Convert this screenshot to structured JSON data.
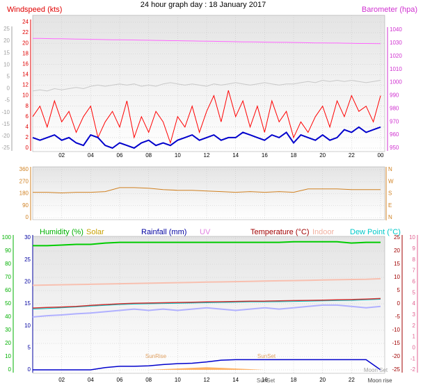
{
  "chart_data": [
    {
      "type": "line",
      "title": "24 hour graph day : 18 January 2017",
      "ylabel": "Windspeed (kts)",
      "y2label": "Barometer (hpa)",
      "x": [
        0,
        0.5,
        1,
        1.5,
        2,
        2.5,
        3,
        3.5,
        4,
        4.5,
        5,
        5.5,
        6,
        6.5,
        7,
        7.5,
        8,
        8.5,
        9,
        9.5,
        10,
        10.5,
        11,
        11.5,
        12,
        12.5,
        13,
        13.5,
        14,
        14.5,
        15,
        15.5,
        16,
        16.5,
        17,
        17.5,
        18,
        18.5,
        19,
        19.5,
        20,
        20.5,
        21,
        21.5,
        22,
        22.5,
        23,
        23.5,
        24
      ],
      "xlim": [
        0,
        24
      ],
      "xticks": [
        {
          "value": 2,
          "label": "02"
        },
        {
          "value": 4,
          "label": "04"
        },
        {
          "value": 6,
          "label": "06"
        },
        {
          "value": 8,
          "label": "08"
        },
        10,
        12,
        14,
        16,
        18,
        20,
        22,
        {
          "value": 24,
          "label": "00"
        }
      ],
      "ylim": [
        0,
        24
      ],
      "yticks": [
        0,
        2,
        4,
        6,
        8,
        10,
        12,
        14,
        16,
        18,
        20,
        22,
        24
      ],
      "ycolor": "#e00000",
      "y2lim": [
        950,
        1040
      ],
      "y2ticks": [
        950,
        960,
        970,
        980,
        990,
        1000,
        1010,
        1020,
        1030,
        1040
      ],
      "y2color": "#d030d0",
      "y3lim": [
        -25,
        25
      ],
      "y3ticks": [
        -25,
        -20,
        -15,
        -10,
        -5,
        0,
        5,
        10,
        15,
        20,
        25
      ],
      "y3color": "#a0a0a0",
      "grid": true,
      "series": [
        {
          "color": "#c8c8c8",
          "axis": "y3",
          "values": [
            -1,
            -0.5,
            -1,
            0,
            -0.5,
            0,
            0.5,
            0,
            1,
            1.5,
            1,
            1.5,
            2,
            1.5,
            2,
            1,
            1.5,
            1,
            2,
            2.5,
            2,
            1.5,
            2,
            1.5,
            1,
            2,
            1.5,
            2,
            2.5,
            2,
            1.5,
            2,
            2.5,
            2,
            1.5,
            2,
            2,
            2.5,
            3,
            2.5,
            3.5,
            3,
            3.5,
            3,
            3.5,
            3,
            2.5,
            3,
            3.5
          ]
        },
        {
          "color": "#ff66ff",
          "axis": "y2",
          "values": [
            1033.5,
            1033.5,
            1033.4,
            1033.3,
            1033.2,
            1033.1,
            1033,
            1032.9,
            1032.8,
            1032.7,
            1032.6,
            1032.5,
            1032.5,
            1032.4,
            1032.3,
            1032.2,
            1032.1,
            1032,
            1031.9,
            1031.8,
            1031.8,
            1031.7,
            1031.6,
            1031.5,
            1031.4,
            1031.3,
            1031.2,
            1031.1,
            1031,
            1030.9,
            1030.9,
            1030.8,
            1030.7,
            1030.6,
            1030.5,
            1030.5,
            1030.4,
            1030.3,
            1030.2,
            1030.1,
            1030.1,
            1030,
            1030,
            1029.9,
            1029.8,
            1029.7,
            1029.7,
            1029.6,
            1029.5
          ]
        },
        {
          "color": "#ff0000",
          "axis": "y",
          "values": [
            6,
            8,
            4,
            9,
            5,
            7,
            3,
            6,
            8,
            2,
            5,
            7,
            4,
            9,
            2,
            6,
            3,
            7,
            5,
            1,
            6,
            4,
            8,
            3,
            7,
            10,
            5,
            11,
            6,
            9,
            4,
            8,
            3,
            9,
            5,
            7,
            2,
            5,
            3,
            6,
            8,
            4,
            9,
            6,
            10,
            7,
            8,
            5,
            10
          ]
        },
        {
          "color": "#0000cc",
          "axis": "y",
          "width": 2,
          "values": [
            2,
            1.5,
            2,
            2.5,
            1.5,
            2,
            1,
            0.5,
            2.5,
            2,
            0.5,
            0,
            1,
            0.5,
            0,
            1,
            1.5,
            0.5,
            1,
            0.5,
            1.5,
            2,
            2.5,
            1.5,
            2,
            2.5,
            1.5,
            2,
            2,
            3,
            2.5,
            2,
            1.5,
            2.5,
            2,
            3,
            1,
            2.5,
            2,
            1.5,
            2.5,
            1.5,
            2,
            3.5,
            3,
            4,
            3,
            3.5,
            4
          ]
        }
      ]
    },
    {
      "type": "line",
      "x": [
        0,
        1,
        2,
        3,
        4,
        5,
        6,
        7,
        8,
        9,
        10,
        11,
        12,
        13,
        14,
        15,
        16,
        17,
        18,
        19,
        20,
        21,
        22,
        23,
        24
      ],
      "xlim": [
        0,
        24
      ],
      "xticks": [
        2,
        4,
        6,
        8,
        10,
        12,
        14,
        16,
        18,
        20,
        22,
        24
      ],
      "ylim": [
        0,
        360
      ],
      "yticks": [
        0,
        90,
        180,
        270,
        360
      ],
      "ycolor": "#d08020",
      "y2lim": [
        0,
        360
      ],
      "y2ticks": [
        {
          "value": 0,
          "label": "N"
        },
        {
          "value": 90,
          "label": "E"
        },
        {
          "value": 180,
          "label": "S"
        },
        {
          "value": 270,
          "label": "W"
        },
        {
          "value": 360,
          "label": "N"
        }
      ],
      "y2color": "#d08020",
      "grid": true,
      "series": [
        {
          "color": "#d08020",
          "axis": "y",
          "values": [
            190,
            190,
            185,
            190,
            190,
            195,
            225,
            225,
            220,
            210,
            205,
            205,
            200,
            195,
            190,
            195,
            190,
            195,
            190,
            215,
            215,
            215,
            210,
            210,
            210
          ]
        }
      ]
    },
    {
      "type": "line",
      "labels": [
        {
          "text": "Humidity (%)",
          "color": "#00b000"
        },
        {
          "text": "Solar",
          "color": "#c8a000"
        },
        {
          "text": "Rainfall (mm)",
          "color": "#0000a0"
        },
        {
          "text": "UV",
          "color": "#e080e0"
        },
        {
          "text": "Temperature (°C)",
          "color": "#a00000"
        },
        {
          "text": "Indoor",
          "color": "#f0b0a0"
        },
        {
          "text": "Dew Point (°C)",
          "color": "#00c8c8"
        }
      ],
      "annotations": [
        "SunRise",
        "SunSet",
        "SunSet",
        "Moon Set",
        "Moon rise"
      ],
      "x": [
        0,
        1,
        2,
        3,
        4,
        5,
        6,
        7,
        8,
        9,
        10,
        11,
        12,
        13,
        14,
        15,
        16,
        17,
        18,
        19,
        20,
        21,
        22,
        23,
        24
      ],
      "xlim": [
        0,
        24
      ],
      "xticks": [
        {
          "value": 2,
          "label": "02"
        },
        {
          "value": 4,
          "label": "04"
        },
        {
          "value": 6,
          "label": "06"
        },
        {
          "value": 8,
          "label": "08"
        },
        10,
        12,
        14,
        16,
        18,
        20,
        22
      ],
      "ylim": [
        0,
        100
      ],
      "yticks": [
        0,
        10,
        20,
        30,
        40,
        50,
        60,
        70,
        80,
        90,
        100
      ],
      "ycolor": "#00b000",
      "y2lim": [
        0,
        30
      ],
      "y2ticks": [
        0,
        5,
        10,
        15,
        20,
        25,
        30
      ],
      "y2color": "#0000a0",
      "y3lim": [
        -25,
        25
      ],
      "y3ticks": [
        -25,
        -20,
        -15,
        -10,
        -5,
        0,
        5,
        10,
        15,
        20,
        25
      ],
      "y3color": "#a00000",
      "y4lim": [
        -2,
        10
      ],
      "y4ticks": [
        -2,
        -1,
        0,
        1,
        2,
        3,
        4,
        5,
        6,
        7,
        8,
        9,
        10
      ],
      "y4color": "#e06090",
      "grid": true,
      "series": [
        {
          "color": "#ffa040",
          "axis": "y",
          "area": true,
          "values": [
            0,
            0,
            0,
            0,
            0,
            0,
            0,
            0,
            0,
            0.5,
            1,
            1.5,
            2,
            1.5,
            1,
            0.5,
            0,
            0,
            0,
            0,
            0,
            0,
            0,
            0,
            0
          ]
        },
        {
          "color": "#b0b0ff",
          "axis": "y3",
          "width": 2,
          "values": [
            -5,
            -4.5,
            -4.2,
            -3.8,
            -3.5,
            -3,
            -2.5,
            -2,
            -2.5,
            -2,
            -2.5,
            -2,
            -1.5,
            -2,
            -2.5,
            -2,
            -1.5,
            -2,
            -1.5,
            -1,
            -0.5,
            -0.5,
            -1,
            -1.5,
            -1
          ]
        },
        {
          "color": "#f8c0b0",
          "axis": "y3",
          "width": 2,
          "values": [
            7,
            7.1,
            7.2,
            7.3,
            7.4,
            7.5,
            7.6,
            7.7,
            7.8,
            7.9,
            8,
            8.1,
            8.2,
            8.3,
            8.4,
            8.5,
            8.6,
            8.7,
            8.8,
            8.9,
            9,
            9.1,
            9.2,
            9.3,
            9.5
          ]
        },
        {
          "color": "#00c8c8",
          "axis": "y3",
          "values": [
            -2,
            -1.8,
            -1.5,
            -1.2,
            -0.9,
            -0.6,
            -0.3,
            -0.1,
            0,
            0.1,
            0.2,
            0.3,
            0.4,
            0.5,
            0.6,
            0.7,
            0.7,
            0.8,
            0.9,
            1,
            1.1,
            1.2,
            1.3,
            1.5,
            1.7
          ]
        },
        {
          "color": "#d03030",
          "axis": "y3",
          "width": 1.5,
          "values": [
            -1.6,
            -1.4,
            -1.2,
            -1,
            -0.6,
            -0.3,
            0,
            0.2,
            0.3,
            0.4,
            0.5,
            0.6,
            0.7,
            0.8,
            0.9,
            1,
            1,
            1.1,
            1.2,
            1.3,
            1.4,
            1.5,
            1.6,
            1.8,
            2
          ]
        },
        {
          "color": "#0000cc",
          "axis": "y2",
          "width": 1.5,
          "values": [
            0,
            0,
            0,
            0,
            0,
            0.5,
            0.8,
            0.8,
            0.9,
            1.2,
            1.4,
            1.5,
            1.8,
            2.2,
            2.3,
            2.3,
            2.3,
            2.3,
            2.3,
            2.3,
            2.3,
            2.3,
            2.3,
            2.3,
            0
          ]
        },
        {
          "color": "#00cc00",
          "axis": "y",
          "width": 2,
          "values": [
            94,
            94,
            94.5,
            95,
            95,
            96,
            96.5,
            96.5,
            96.5,
            96.5,
            96.5,
            96.5,
            96.5,
            96.5,
            96.5,
            96.5,
            96.5,
            96.5,
            97,
            97,
            97,
            97,
            96,
            96.5,
            96.5
          ]
        }
      ]
    }
  ]
}
